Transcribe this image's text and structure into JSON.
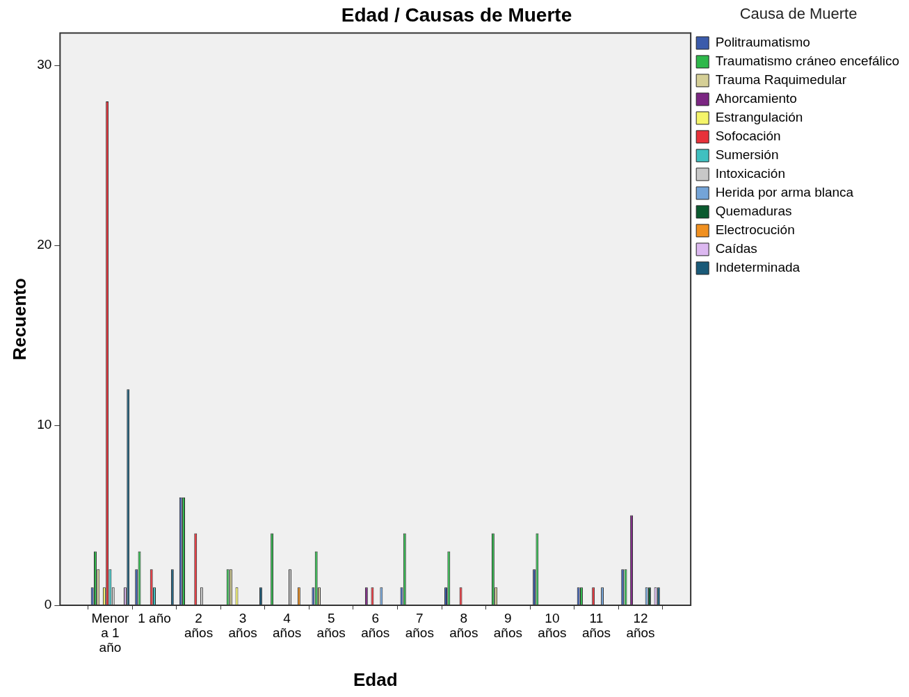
{
  "chart_data": {
    "type": "bar",
    "title": "Edad / Causas de Muerte",
    "xlabel": "Edad",
    "ylabel": "Recuento",
    "legend_title": "Causa de Muerte",
    "categories": [
      "Menor a 1 año",
      "1 año",
      "2 años",
      "3 años",
      "4 años",
      "5 años",
      "6 años",
      "7 años",
      "8 años",
      "9 años",
      "10 años",
      "11 años",
      "12 años"
    ],
    "series": [
      {
        "name": "Politraumatismo",
        "color": "#3b5bab",
        "values": [
          1,
          2,
          6,
          0,
          0,
          1,
          0,
          1,
          1,
          0,
          2,
          1,
          2
        ]
      },
      {
        "name": "Traumatismo cráneo encefálico",
        "color": "#2eb84b",
        "values": [
          3,
          3,
          6,
          2,
          4,
          3,
          0,
          4,
          3,
          4,
          4,
          1,
          2
        ]
      },
      {
        "name": "Trauma Raquimedular",
        "color": "#d5cf96",
        "values": [
          2,
          0,
          0,
          2,
          0,
          1,
          0,
          0,
          0,
          1,
          0,
          0,
          0
        ]
      },
      {
        "name": "Ahorcamiento",
        "color": "#7b2682",
        "values": [
          0,
          0,
          0,
          0,
          0,
          0,
          1,
          0,
          0,
          0,
          0,
          0,
          5
        ]
      },
      {
        "name": "Estrangulación",
        "color": "#f5f56a",
        "values": [
          1,
          0,
          0,
          1,
          0,
          0,
          0,
          0,
          0,
          0,
          0,
          0,
          0
        ]
      },
      {
        "name": "Sofocación",
        "color": "#e8323a",
        "values": [
          28,
          2,
          4,
          0,
          0,
          0,
          1,
          0,
          1,
          0,
          0,
          1,
          0
        ]
      },
      {
        "name": "Sumersión",
        "color": "#40c0c0",
        "values": [
          2,
          1,
          0,
          0,
          0,
          0,
          0,
          0,
          0,
          0,
          0,
          0,
          0
        ]
      },
      {
        "name": "Intoxicación",
        "color": "#c8c8c8",
        "values": [
          1,
          0,
          1,
          0,
          2,
          0,
          0,
          0,
          0,
          0,
          0,
          0,
          0
        ]
      },
      {
        "name": "Herida por arma blanca",
        "color": "#74a4d8",
        "values": [
          0,
          0,
          0,
          0,
          0,
          0,
          1,
          0,
          0,
          0,
          0,
          1,
          1
        ]
      },
      {
        "name": "Quemaduras",
        "color": "#0a5a2f",
        "values": [
          0,
          0,
          0,
          0,
          0,
          0,
          0,
          0,
          0,
          0,
          0,
          0,
          1
        ]
      },
      {
        "name": "Electrocución",
        "color": "#f09020",
        "values": [
          0,
          0,
          0,
          0,
          1,
          0,
          0,
          0,
          0,
          0,
          0,
          0,
          0
        ]
      },
      {
        "name": "Caídas",
        "color": "#dcb8f0",
        "values": [
          1,
          0,
          0,
          0,
          0,
          0,
          0,
          0,
          0,
          0,
          0,
          0,
          1
        ]
      },
      {
        "name": "Indeterminada",
        "color": "#1a5a78",
        "values": [
          12,
          2,
          0,
          1,
          0,
          0,
          0,
          0,
          0,
          0,
          0,
          0,
          1
        ]
      }
    ],
    "ylim": [
      0,
      31.8
    ],
    "yticks": [
      0,
      10,
      20,
      30
    ],
    "legend": "right"
  }
}
